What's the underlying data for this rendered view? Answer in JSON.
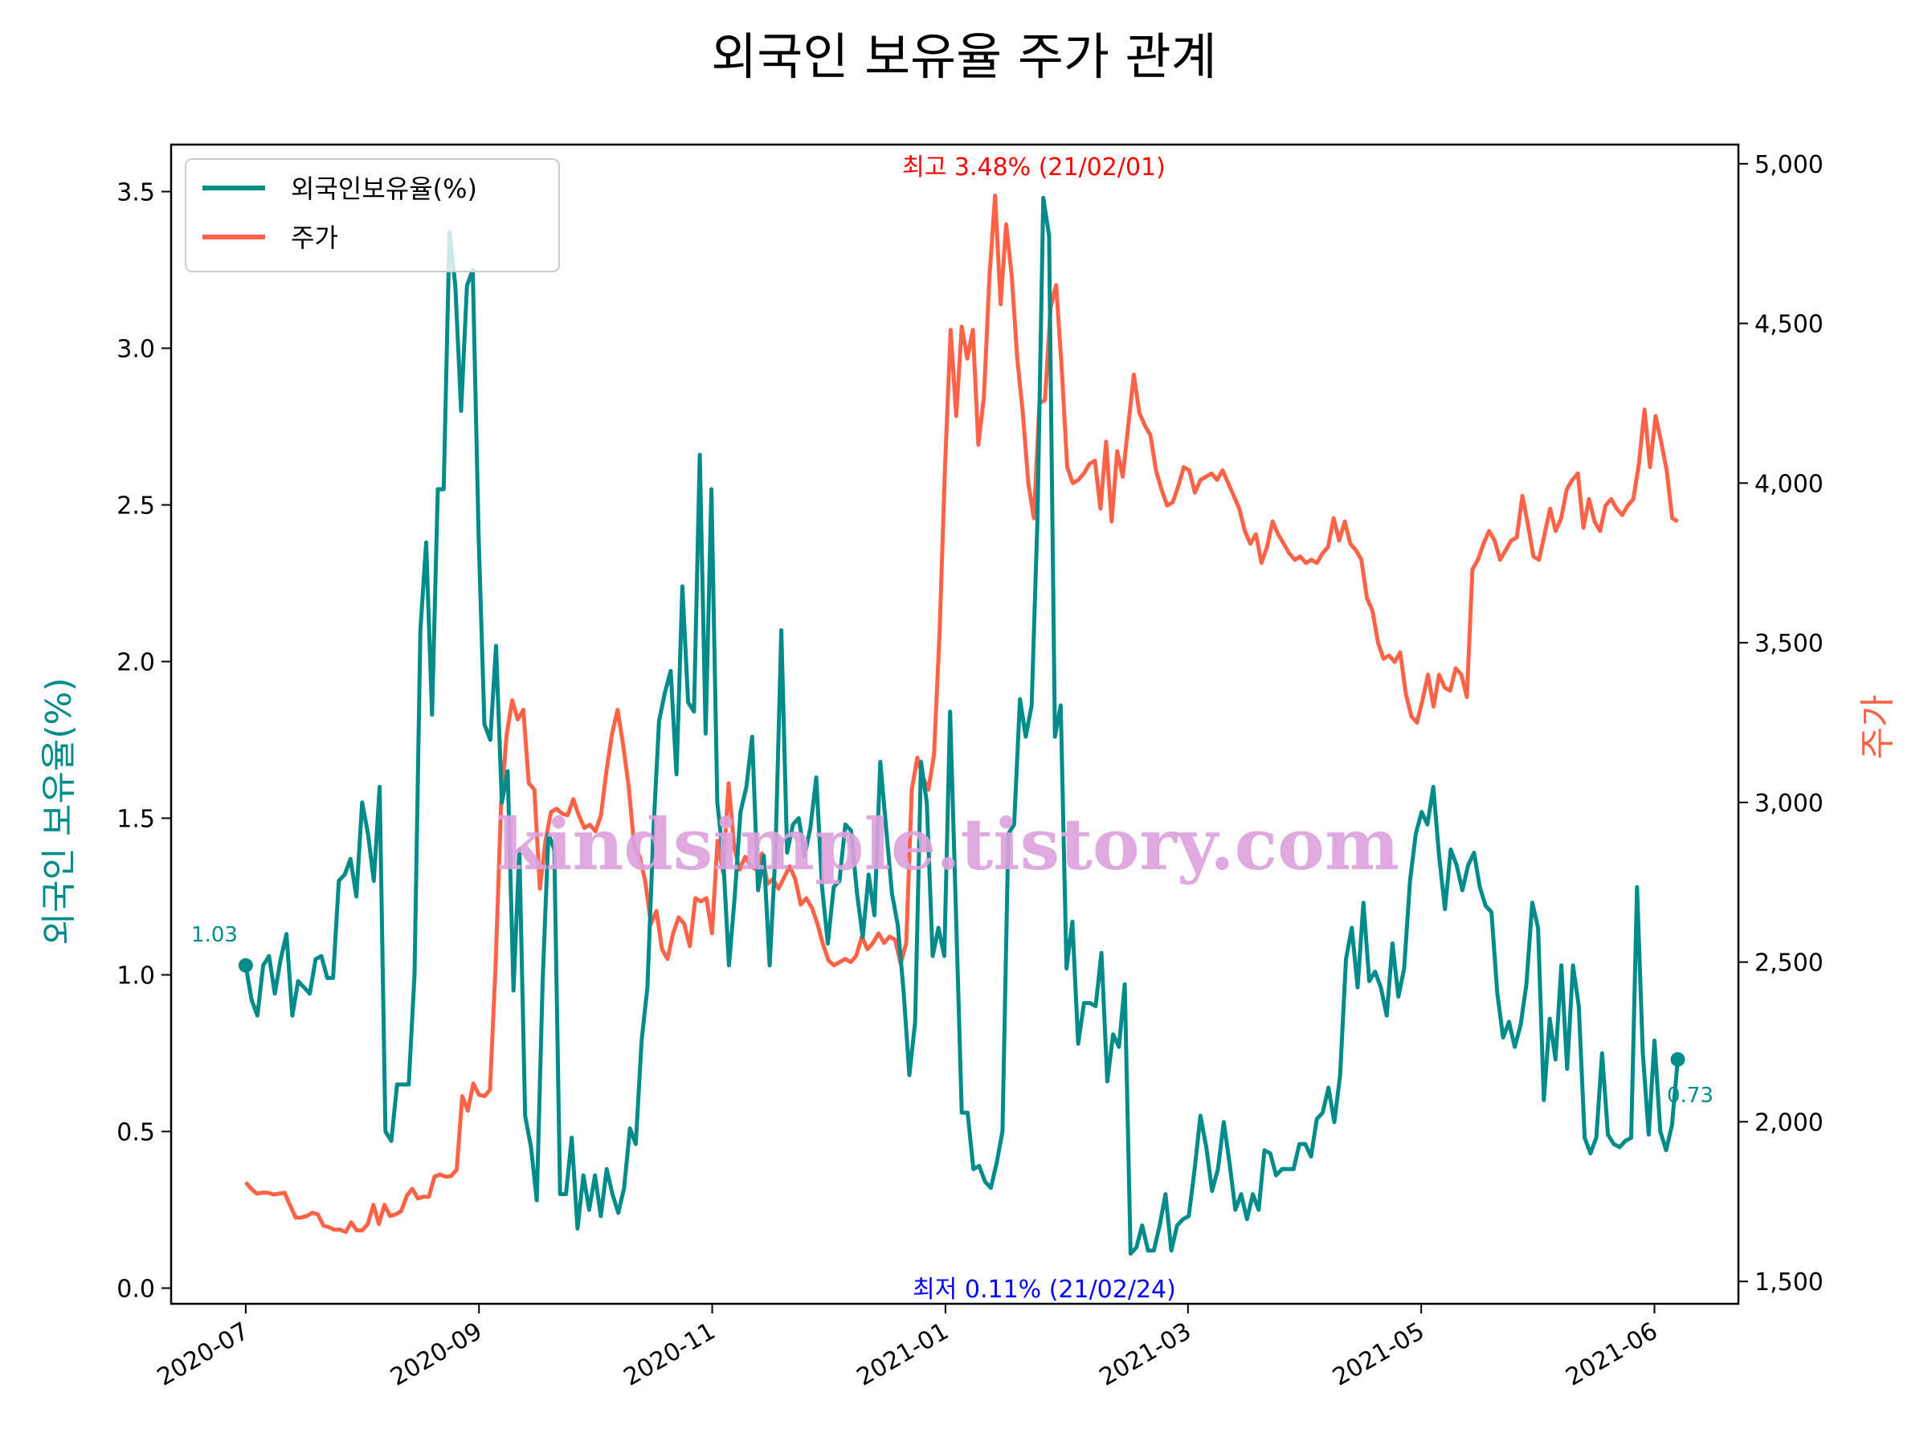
{
  "chart_data": {
    "type": "line",
    "title": "외국인 보유율 주가 관계",
    "xlabel": "",
    "ylabel_left": "외국인 보유율(%)",
    "ylabel_right": "주가",
    "x_ticks": [
      "2020-07",
      "2020-09",
      "2020-11",
      "2021-01",
      "2021-03",
      "2021-05",
      "2021-06"
    ],
    "y_left_ticks": [
      "0.0",
      "0.5",
      "1.0",
      "1.5",
      "2.0",
      "2.5",
      "3.0",
      "3.5"
    ],
    "y_left_range": [
      -0.05,
      3.65
    ],
    "y_right_ticks": [
      "1,500",
      "2,000",
      "2,500",
      "3,000",
      "3,500",
      "4,000",
      "4,500",
      "5,000"
    ],
    "y_right_range": [
      1430,
      5060
    ],
    "x_index_range": [
      -8,
      160
    ],
    "x_tick_indices": [
      0,
      25,
      50,
      75,
      101,
      126,
      151
    ],
    "legend": [
      "외국인보유율(%)",
      "주가"
    ],
    "legend_position": "upper-left",
    "grid": false,
    "colors": {
      "foreign": "#008B8B",
      "price": "#FF6347",
      "max_annot": "#FF0000",
      "min_annot": "#0000FF",
      "watermark": "#DDA0DD"
    },
    "annotations": {
      "max": "최고 3.48% (21/02/01)",
      "min": "최저 0.11% (21/02/24)",
      "start": "1.03",
      "end": "0.73"
    },
    "watermark": "kindsimple.tistory.com",
    "series": [
      {
        "name": "외국인보유율(%)",
        "axis": "left",
        "values": [
          1.03,
          0.92,
          0.87,
          1.03,
          1.06,
          0.94,
          1.05,
          1.13,
          0.87,
          0.98,
          0.96,
          0.94,
          1.05,
          1.06,
          0.99,
          0.99,
          1.3,
          1.32,
          1.37,
          1.25,
          1.55,
          1.45,
          1.3,
          1.6,
          0.5,
          0.47,
          0.65,
          0.65,
          0.65,
          1.0,
          2.1,
          2.38,
          1.83,
          2.55,
          2.55,
          3.37,
          3.2,
          2.8,
          3.2,
          3.25,
          2.4,
          1.8,
          1.75,
          2.05,
          1.55,
          1.65,
          0.95,
          1.4,
          0.55,
          0.45,
          0.28,
          0.98,
          1.45,
          1.4,
          0.3,
          0.3,
          0.48,
          0.19,
          0.36,
          0.25,
          0.36,
          0.23,
          0.38,
          0.3,
          0.24,
          0.32,
          0.51,
          0.46,
          0.79,
          0.96,
          1.45,
          1.81,
          1.9,
          1.97,
          1.64,
          2.24,
          1.87,
          1.84,
          2.66,
          1.77,
          2.55,
          1.55,
          1.38,
          1.03,
          1.25,
          1.52,
          1.6,
          1.76,
          1.27,
          1.38,
          1.03,
          1.39,
          2.1,
          1.39,
          1.48,
          1.5,
          1.38,
          1.47,
          1.63,
          1.28,
          1.1,
          1.28,
          1.3,
          1.48,
          1.46,
          1.26,
          1.12,
          1.32,
          1.19,
          1.68,
          1.47,
          1.26,
          1.16,
          0.95,
          0.68,
          0.85,
          1.68,
          1.55,
          1.06,
          1.15,
          1.06,
          1.84,
          1.2,
          0.56,
          0.56,
          0.38,
          0.39,
          0.34,
          0.32,
          0.4,
          0.5,
          1.45,
          1.48,
          1.88,
          1.76,
          1.86,
          2.45,
          3.48,
          3.36,
          1.76,
          1.86,
          1.02,
          1.17,
          0.78,
          0.91,
          0.91,
          0.9,
          1.07,
          0.66,
          0.81,
          0.77,
          0.97,
          0.11,
          0.13,
          0.2,
          0.12,
          0.12,
          0.2,
          0.3,
          0.12,
          0.2,
          0.22,
          0.23,
          0.38,
          0.55,
          0.45,
          0.31,
          0.38,
          0.53,
          0.4,
          0.25,
          0.3,
          0.22,
          0.3,
          0.25,
          0.44,
          0.43,
          0.36,
          0.38,
          0.38,
          0.38,
          0.46,
          0.46,
          0.42,
          0.54,
          0.56,
          0.64,
          0.53,
          0.68,
          1.05,
          1.15,
          0.96,
          1.23,
          0.98,
          1.01,
          0.96,
          0.87,
          1.1,
          0.93,
          1.02,
          1.3,
          1.45,
          1.52,
          1.48,
          1.6,
          1.38,
          1.21,
          1.4,
          1.35,
          1.27,
          1.35,
          1.39,
          1.28,
          1.22,
          1.2,
          0.94,
          0.8,
          0.85,
          0.77,
          0.84,
          0.97,
          1.23,
          1.15,
          0.6,
          0.86,
          0.73,
          1.03,
          0.7,
          1.03,
          0.9,
          0.48,
          0.43,
          0.48,
          0.75,
          0.49,
          0.46,
          0.45,
          0.47,
          0.48,
          1.28,
          0.75,
          0.49,
          0.79,
          0.5,
          0.44,
          0.52,
          0.73
        ]
      },
      {
        "name": "주가",
        "axis": "right",
        "values": [
          1810,
          1790,
          1775,
          1778,
          1778,
          1772,
          1775,
          1778,
          1738,
          1700,
          1700,
          1705,
          1715,
          1710,
          1675,
          1670,
          1662,
          1662,
          1655,
          1685,
          1660,
          1660,
          1680,
          1740,
          1680,
          1740,
          1705,
          1710,
          1720,
          1768,
          1790,
          1760,
          1765,
          1765,
          1828,
          1835,
          1828,
          1830,
          1850,
          2080,
          2035,
          2120,
          2085,
          2080,
          2100,
          2480,
          2990,
          3210,
          3320,
          3260,
          3290,
          3060,
          3040,
          2730,
          2880,
          2970,
          2980,
          2965,
          2960,
          3010,
          2960,
          2920,
          2930,
          2910,
          2960,
          3100,
          3215,
          3290,
          3180,
          3050,
          2860,
          2830,
          2750,
          2620,
          2660,
          2540,
          2510,
          2590,
          2640,
          2620,
          2550,
          2700,
          2690,
          2700,
          2590,
          2880,
          2780,
          3060,
          2860,
          2790,
          2830,
          2800,
          2790,
          2840,
          2745,
          2760,
          2730,
          2765,
          2800,
          2760,
          2680,
          2700,
          2670,
          2620,
          2555,
          2505,
          2490,
          2500,
          2510,
          2500,
          2520,
          2580,
          2540,
          2560,
          2590,
          2560,
          2580,
          2570,
          2495,
          2560,
          3040,
          3140,
          3080,
          3040,
          3150,
          3530,
          4060,
          4480,
          4210,
          4490,
          4390,
          4480,
          4120,
          4270,
          4650,
          4900,
          4560,
          4810,
          4650,
          4390,
          4220,
          4000,
          3890,
          4250,
          4260,
          4550,
          4620,
          4360,
          4050,
          4000,
          4010,
          4030,
          4060,
          4070,
          3920,
          4130,
          3880,
          4100,
          4020,
          4180,
          4340,
          4220,
          4180,
          4150,
          4040,
          3980,
          3930,
          3940,
          3990,
          4050,
          4040,
          3970,
          4010,
          4020,
          4030,
          4010,
          4040,
          4000,
          3960,
          3920,
          3850,
          3810,
          3840,
          3750,
          3800,
          3880,
          3840,
          3810,
          3780,
          3760,
          3770,
          3750,
          3760,
          3750,
          3780,
          3800,
          3890,
          3820,
          3880,
          3810,
          3790,
          3760,
          3640,
          3600,
          3500,
          3450,
          3460,
          3440,
          3470,
          3340,
          3270,
          3250,
          3320,
          3400,
          3300,
          3400,
          3360,
          3350,
          3420,
          3400,
          3330,
          3730,
          3760,
          3810,
          3850,
          3820,
          3760,
          3790,
          3820,
          3830,
          3960,
          3870,
          3770,
          3760,
          3840,
          3920,
          3850,
          3890,
          3980,
          4010,
          4030,
          3860,
          3950,
          3880,
          3850,
          3930,
          3950,
          3920,
          3900,
          3930,
          3950,
          4060,
          4230,
          4050,
          4210,
          4130,
          4040,
          3890,
          3880
        ]
      }
    ]
  }
}
